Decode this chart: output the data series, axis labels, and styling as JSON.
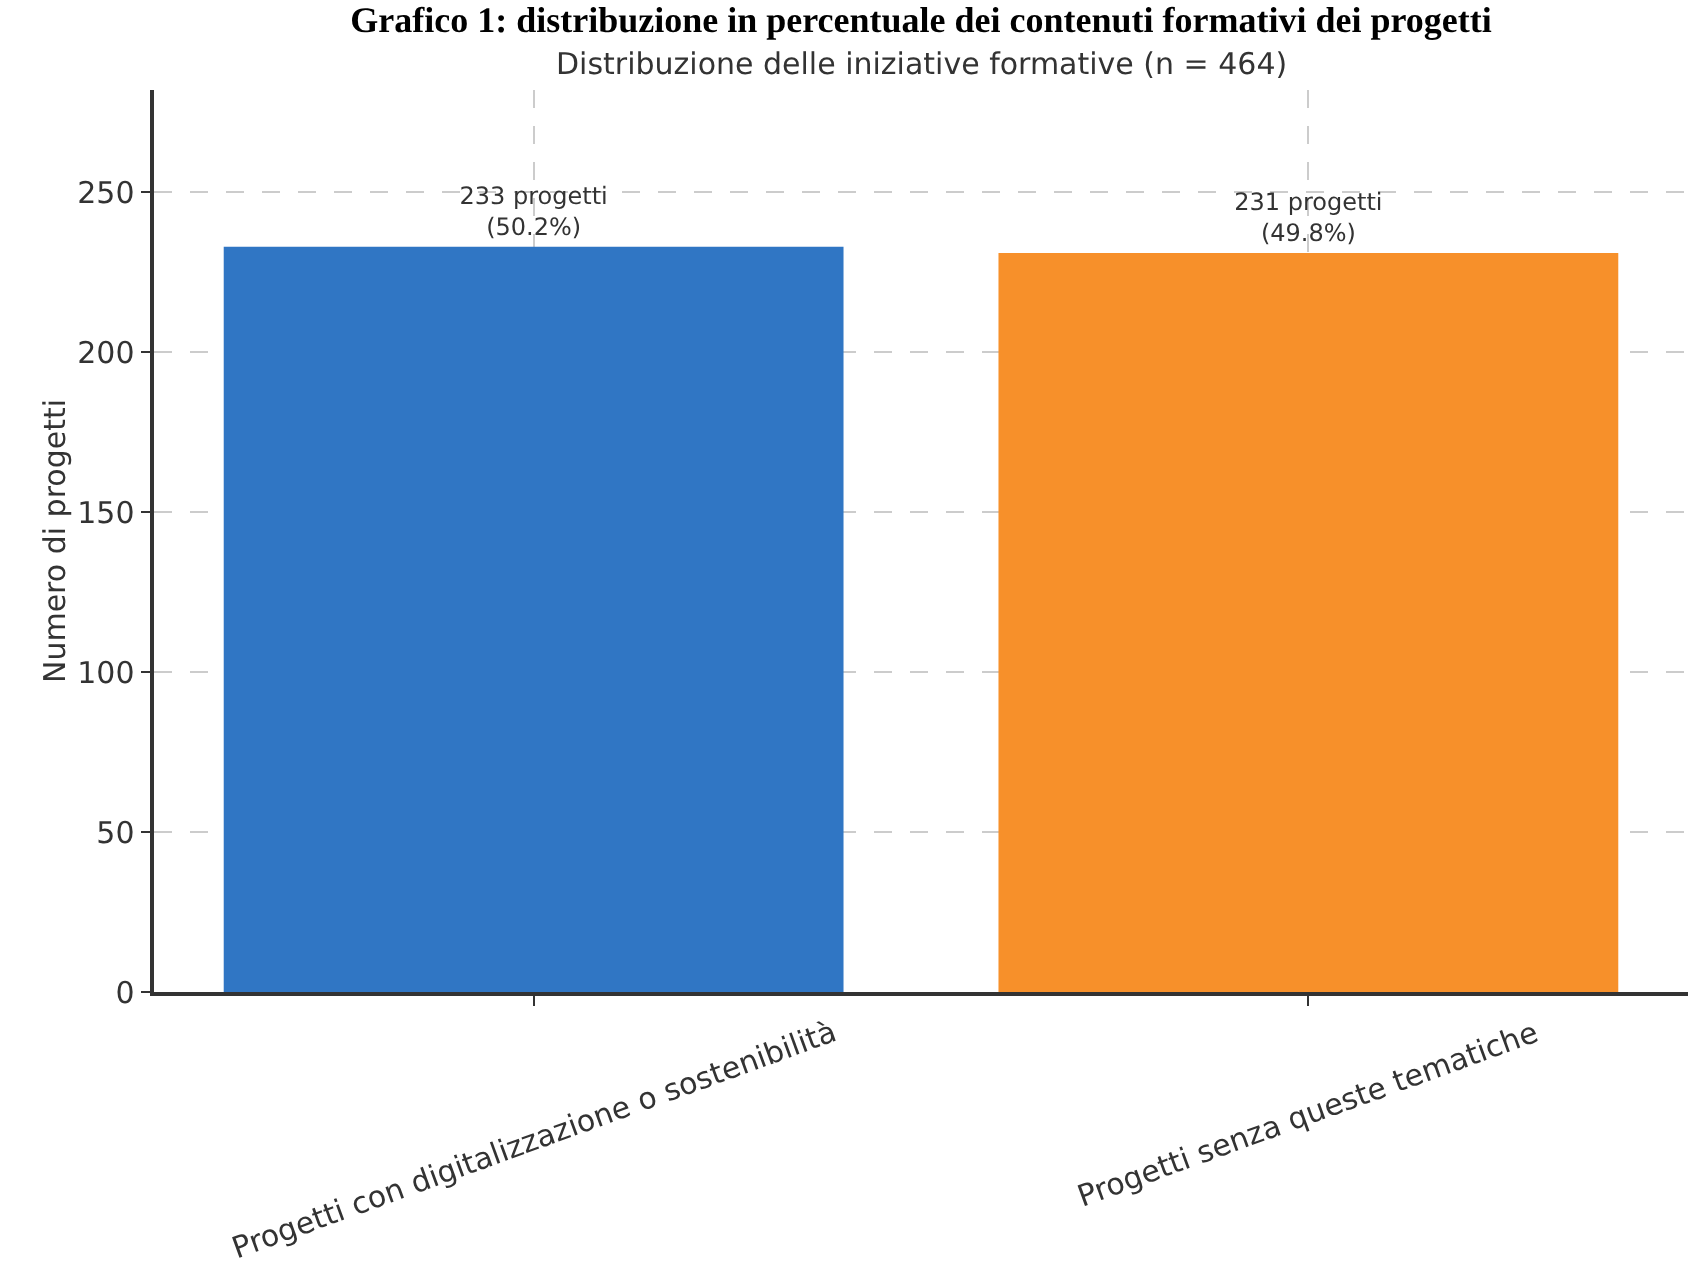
{
  "chart_data": {
    "type": "bar",
    "title": "Grafico 1: distribuzione in percentuale dei contenuti formativi dei progetti",
    "subtitle": "Distribuzione delle iniziative formative (n = 464)",
    "ylabel": "Numero di progetti",
    "categories": [
      "Progetti con digitalizzazione o sostenibilità",
      "Progetti senza queste tematiche"
    ],
    "values": [
      233,
      231
    ],
    "colors": [
      "#3076c4",
      "#f7902a"
    ],
    "value_labels": [
      "233 progetti\n(50.2%)",
      "231 progetti\n(49.8%)"
    ],
    "ylim": [
      0,
      282
    ],
    "yticks": [
      0,
      50,
      100,
      150,
      200,
      250
    ],
    "grid": true,
    "legend": false
  }
}
